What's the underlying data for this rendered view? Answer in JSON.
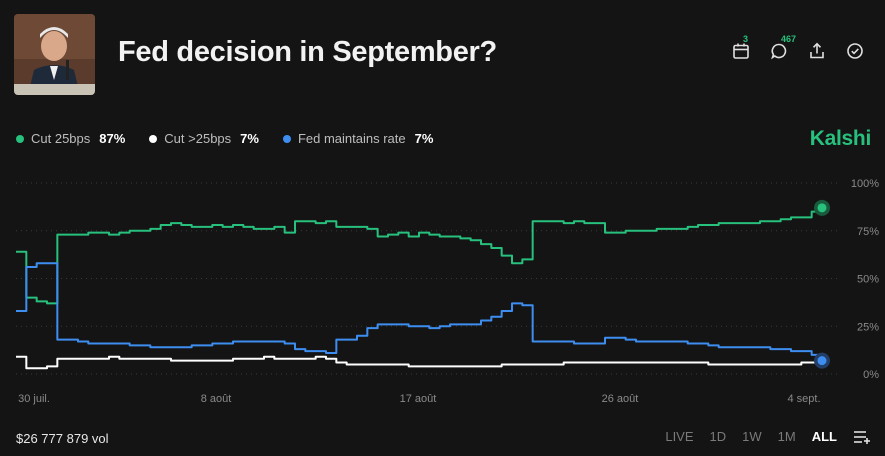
{
  "header": {
    "title": "Fed decision in September?",
    "calendar_count": "3",
    "comments_count": "467"
  },
  "legend": [
    {
      "name": "Cut 25bps",
      "value": "87%",
      "color": "#27c07d"
    },
    {
      "name": "Cut >25bps",
      "value": "7%",
      "color": "#ffffff"
    },
    {
      "name": "Fed maintains rate",
      "value": "7%",
      "color": "#3d8ef0"
    }
  ],
  "brand": "Kalshi",
  "footer": {
    "volume": "$26 777 879 vol",
    "ranges": [
      "LIVE",
      "1D",
      "1W",
      "1M",
      "ALL"
    ],
    "active_range": "ALL"
  },
  "chart_data": {
    "type": "line",
    "x_tick_labels": [
      "30 juil.",
      "8 août",
      "17 août",
      "26 août",
      "4 sept."
    ],
    "y_tick_labels": [
      "100%",
      "75%",
      "50%",
      "25%",
      "0%"
    ],
    "ylim": [
      0,
      100
    ],
    "grid": true,
    "series": [
      {
        "name": "Cut 25bps",
        "color": "#27c07d",
        "values": [
          64,
          40,
          38,
          37,
          73,
          73,
          73,
          74,
          74,
          73,
          74,
          75,
          75,
          76,
          78,
          79,
          78,
          77,
          77,
          78,
          77,
          78,
          77,
          76,
          76,
          77,
          74,
          80,
          80,
          79,
          80,
          77,
          77,
          77,
          76,
          72,
          73,
          74,
          72,
          74,
          73,
          72,
          72,
          71,
          70,
          68,
          66,
          62,
          58,
          60,
          80,
          80,
          80,
          79,
          80,
          79,
          79,
          74,
          74,
          75,
          75,
          75,
          76,
          76,
          76,
          77,
          78,
          78,
          79,
          79,
          79,
          79,
          80,
          80,
          81,
          82,
          82,
          85,
          87
        ]
      },
      {
        "name": "Cut >25bps",
        "color": "#ffffff",
        "values": [
          9,
          3,
          3,
          4,
          8,
          8,
          8,
          8,
          8,
          9,
          8,
          8,
          8,
          8,
          8,
          7,
          7,
          7,
          7,
          7,
          7,
          8,
          8,
          8,
          9,
          8,
          8,
          8,
          8,
          9,
          8,
          6,
          5,
          5,
          5,
          5,
          5,
          5,
          4,
          4,
          4,
          4,
          4,
          4,
          4,
          4,
          4,
          5,
          5,
          5,
          5,
          5,
          5,
          6,
          6,
          6,
          6,
          6,
          6,
          6,
          6,
          6,
          6,
          6,
          6,
          6,
          6,
          5,
          5,
          5,
          5,
          5,
          5,
          5,
          5,
          5,
          6,
          6,
          7
        ]
      },
      {
        "name": "Fed maintains rate",
        "color": "#3d8ef0",
        "values": [
          33,
          56,
          58,
          58,
          18,
          18,
          17,
          16,
          16,
          16,
          16,
          15,
          15,
          14,
          14,
          14,
          14,
          15,
          15,
          16,
          16,
          17,
          17,
          17,
          17,
          17,
          16,
          13,
          12,
          12,
          11,
          18,
          18,
          20,
          24,
          26,
          26,
          26,
          25,
          25,
          24,
          25,
          26,
          26,
          26,
          28,
          30,
          33,
          37,
          36,
          17,
          17,
          17,
          17,
          16,
          16,
          16,
          19,
          19,
          18,
          17,
          17,
          17,
          17,
          17,
          16,
          16,
          15,
          14,
          14,
          14,
          14,
          14,
          13,
          13,
          12,
          12,
          10,
          7
        ]
      }
    ]
  }
}
